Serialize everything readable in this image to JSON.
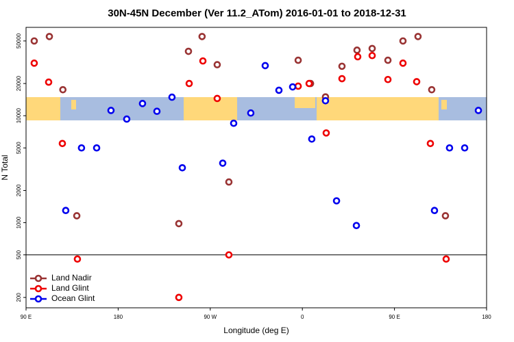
{
  "chart_data": {
    "type": "scatter",
    "title": "30N-45N December (Ver 11.2_ATom)   2016-01-01 to 2018-12-31",
    "xlabel": "Longitude (deg E)",
    "ylabel": "N Total",
    "xlim": [
      90,
      540
    ],
    "xticks": [
      {
        "value": 90,
        "label": "90 E"
      },
      180,
      {
        "value": 270,
        "label": "90 W"
      },
      {
        "value": 360,
        "label": "0"
      },
      {
        "value": 450,
        "label": "90 E"
      },
      {
        "value": 540,
        "label": "180"
      }
    ],
    "ylim": [
      160,
      67000
    ],
    "log_y": true,
    "yticks": [
      200,
      500,
      1000,
      2000,
      5000,
      10000,
      20000,
      50000
    ],
    "hline": 500,
    "legend": "lower left",
    "series": [
      {
        "name": "Land Nadir",
        "color": "#993333",
        "x": [
          98,
          112.8,
          126,
          139.6,
          239.3,
          248.7,
          262,
          276.8,
          288.2,
          355.9,
          368,
          382.6,
          398.7,
          413.4,
          428.2,
          443.6,
          458.3,
          473,
          486.4,
          499.8
        ],
        "values": [
          50000,
          55000,
          17500,
          1160,
          980,
          40000,
          55000,
          30000,
          2400,
          33000,
          20000,
          15000,
          29000,
          41000,
          42500,
          33000,
          50000,
          55000,
          17500,
          1160
        ]
      },
      {
        "name": "Land Glint",
        "color": "#ee0000",
        "x": [
          98,
          112.1,
          125.5,
          140.2,
          239.3,
          249.4,
          262.8,
          276.8,
          288.2,
          355.9,
          366.6,
          383.3,
          398.7,
          414.1,
          428.2,
          443.6,
          458.3,
          471.7,
          485.1,
          500.5
        ],
        "values": [
          31000,
          20600,
          5500,
          457,
          200,
          20000,
          32500,
          14500,
          500,
          18900,
          20000,
          6900,
          22200,
          35600,
          36500,
          21800,
          31000,
          20800,
          5500,
          457
        ]
      },
      {
        "name": "Ocean Glint",
        "color": "#0000ee",
        "x": [
          128.8,
          144.2,
          159,
          173,
          188.4,
          203.8,
          217.9,
          232.6,
          242.7,
          282.2,
          292.9,
          309.6,
          323.7,
          337.1,
          350.5,
          369.2,
          382.6,
          393.4,
          412.8,
          489.1,
          503.8,
          518.6,
          532
        ],
        "values": [
          1300,
          5000,
          5000,
          11200,
          9300,
          13000,
          11000,
          14900,
          3260,
          3600,
          8500,
          10600,
          29400,
          17300,
          18600,
          6050,
          13800,
          1600,
          940,
          1300,
          5000,
          5000,
          11200
        ]
      }
    ]
  }
}
